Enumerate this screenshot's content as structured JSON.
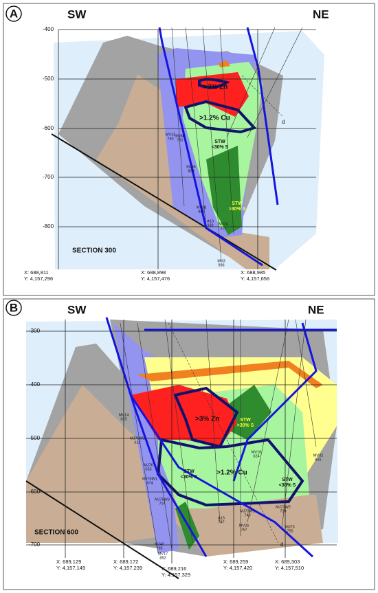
{
  "panels": [
    {
      "label": "A",
      "sw": "SW",
      "ne": "NE",
      "depths": [
        "-400",
        "-500",
        "-600",
        "-700",
        "-800"
      ],
      "section": "SECTION 300",
      "coords": [
        {
          "x": "X: 688,811",
          "y": "Y: 4,157,296"
        },
        {
          "x": "X: 688,898",
          "y": "Y: 4,157,476"
        },
        {
          "x": "X: 688,985",
          "y": "Y: 4,157,656"
        }
      ],
      "zn": ">3% Zn",
      "cu": ">1.2% Cu",
      "fault": "d",
      "zones": [
        {
          "name": "STW",
          "sulfur": "<30% S"
        },
        {
          "name": "STW",
          "sulfur": ">30% S"
        }
      ],
      "drillholes": [
        {
          "name": "MV13",
          "depth": "740"
        },
        {
          "name": "MJ88",
          "depth": "781"
        },
        {
          "name": "MJ86",
          "depth": "800"
        },
        {
          "name": "MV38",
          "depth": "802"
        },
        {
          "name": "A10",
          "depth": "930"
        },
        {
          "name": "MJ74",
          "depth": "921"
        },
        {
          "name": "MV3",
          "depth": "996"
        }
      ]
    },
    {
      "label": "B",
      "sw": "SW",
      "ne": "NE",
      "depths": [
        "-300",
        "-400",
        "-500",
        "-600",
        "-700"
      ],
      "section": "SECTION 600",
      "coords": [
        {
          "x": "X: 689,129",
          "y": "Y: 4,157,149"
        },
        {
          "x": "X: 689,172",
          "y": "Y: 4,157,239"
        },
        {
          "x": "X: 689,216",
          "y": "Y: 4,157,329"
        },
        {
          "x": "X: 689,259",
          "y": "Y: 4,157,420"
        },
        {
          "x": "X: 689,303",
          "y": "Y: 4,157,510"
        }
      ],
      "zn": ">3% Zn",
      "cu": ">1.2% Cu",
      "fault": "d",
      "zones": [
        {
          "name": "STW",
          "sulfur": ">30% S"
        },
        {
          "name": "STW",
          "sulfur": "<30% S"
        },
        {
          "name": "STW",
          "sulfur": "<30% S"
        }
      ],
      "drillholes": [
        {
          "name": "MV14",
          "depth": "623"
        },
        {
          "name": "MJ76W2",
          "depth": "612"
        },
        {
          "name": "MJ76",
          "depth": "653"
        },
        {
          "name": "MJ76W1",
          "depth": "674"
        },
        {
          "name": "MJ76W3",
          "depth": "707"
        },
        {
          "name": "MV10",
          "depth": "624"
        },
        {
          "name": "MV32",
          "depth": "631"
        },
        {
          "name": "A15",
          "depth": "747"
        },
        {
          "name": "MJ73W1",
          "depth": "740"
        },
        {
          "name": "MJ73W2",
          "depth": "739"
        },
        {
          "name": "MV26",
          "depth": "757"
        },
        {
          "name": "MJ73",
          "depth": "755"
        },
        {
          "name": "MJ42",
          "depth": "795"
        },
        {
          "name": "MV17",
          "depth": "852"
        }
      ]
    }
  ]
}
